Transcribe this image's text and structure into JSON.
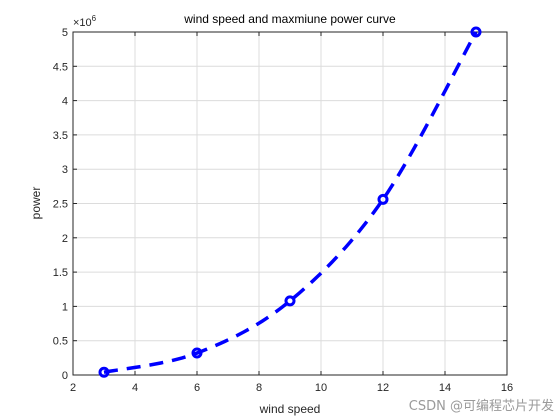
{
  "chart_data": {
    "type": "line",
    "title": "wind speed and maxmiune power curve",
    "xlabel": "wind speed",
    "ylabel": "power",
    "y_exponent_label": "×10",
    "y_exponent_power": "6",
    "xlim": [
      2,
      16
    ],
    "ylim": [
      0,
      5000000
    ],
    "xticks": [
      2,
      4,
      6,
      8,
      10,
      12,
      14,
      16
    ],
    "yticks": [
      0,
      0.5,
      1,
      1.5,
      2,
      2.5,
      3,
      3.5,
      4,
      4.5,
      5
    ],
    "ytick_scale": 1000000,
    "grid": true,
    "series": [
      {
        "x": [
          3,
          6,
          9,
          12,
          15
        ],
        "y": [
          40000,
          320000,
          1080000,
          2560000,
          5000000
        ],
        "color": "#0000ff",
        "line_style": "dashed",
        "marker": "circle"
      }
    ]
  },
  "watermark": "CSDN @可编程芯片开发"
}
